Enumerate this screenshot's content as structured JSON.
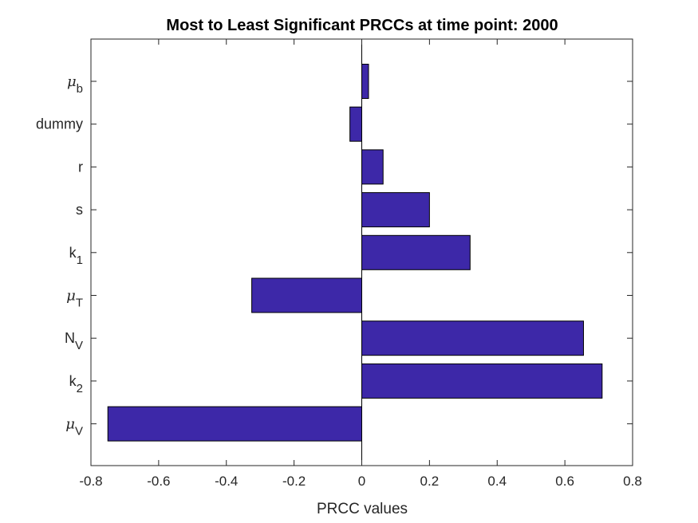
{
  "chart_data": {
    "type": "bar",
    "orientation": "horizontal",
    "title": "Most to Least Significant PRCCs at time point: 2000",
    "xlabel": "PRCC values",
    "ylabel": "",
    "xlim": [
      -0.8,
      0.8
    ],
    "xticks": [
      "-0.8",
      "-0.6",
      "-0.4",
      "-0.2",
      "0",
      "0.2",
      "0.4",
      "0.6",
      "0.8"
    ],
    "grid": false,
    "bar_color": "#3d28a8",
    "categories": [
      {
        "base": "μ",
        "sub": "b",
        "symbol": true
      },
      {
        "base": "dummy",
        "sub": "",
        "symbol": false
      },
      {
        "base": "r",
        "sub": "",
        "symbol": false
      },
      {
        "base": "s",
        "sub": "",
        "symbol": false
      },
      {
        "base": "k",
        "sub": "1",
        "symbol": false
      },
      {
        "base": "μ",
        "sub": "T",
        "symbol": true
      },
      {
        "base": "N",
        "sub": "V",
        "symbol": false
      },
      {
        "base": "k",
        "sub": "2",
        "symbol": false
      },
      {
        "base": "μ",
        "sub": "V",
        "symbol": true
      }
    ],
    "values": [
      0.02,
      -0.035,
      0.063,
      0.2,
      0.32,
      -0.325,
      0.655,
      0.71,
      -0.75
    ]
  }
}
